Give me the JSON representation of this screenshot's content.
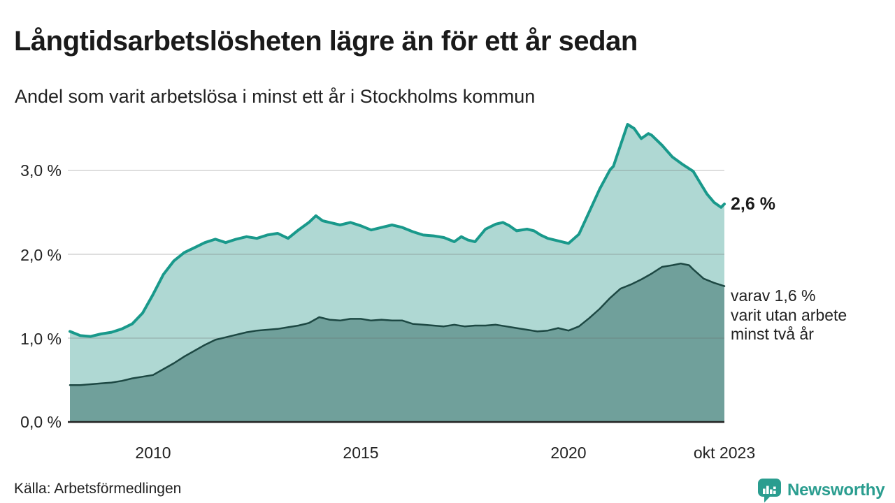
{
  "header": {
    "title": "Långtidsarbetslösheten lägre än för ett år sedan",
    "subtitle": "Andel som varit arbetslösa i minst ett år i Stockholms kommun"
  },
  "chart_data": {
    "type": "area",
    "title": "Långtidsarbetslösheten lägre än för ett år sedan",
    "subtitle": "Andel som varit arbetslösa i minst ett år i Stockholms kommun",
    "unit": "%",
    "grid": "horizontal",
    "legend_position": "none",
    "x_axis": {
      "range": [
        2007.95,
        2023.75
      ],
      "ticks": [
        {
          "label": "2010",
          "year": 2010
        },
        {
          "label": "2015",
          "year": 2015
        },
        {
          "label": "2020",
          "year": 2020
        },
        {
          "label": "okt 2023",
          "year": 2023.75
        }
      ]
    },
    "y_axis": {
      "range": [
        0,
        3.8
      ],
      "ticks": [
        {
          "label": "3,0 %",
          "value": 3.0
        },
        {
          "label": "2,0 %",
          "value": 2.0
        },
        {
          "label": "1,0 %",
          "value": 1.0
        },
        {
          "label": "0,0 %",
          "value": 0.0
        }
      ]
    },
    "series": [
      {
        "name": "Andel arbetslösa minst ett år",
        "line_color": "#19998b",
        "fill_color": "#afd8d3",
        "line_width": 4,
        "x": [
          2008.0,
          2008.25,
          2008.5,
          2008.75,
          2009.0,
          2009.25,
          2009.5,
          2009.75,
          2010.0,
          2010.25,
          2010.5,
          2010.75,
          2011.0,
          2011.25,
          2011.5,
          2011.75,
          2012.0,
          2012.25,
          2012.5,
          2012.75,
          2013.0,
          2013.25,
          2013.5,
          2013.75,
          2013.92,
          2014.08,
          2014.25,
          2014.5,
          2014.75,
          2015.0,
          2015.25,
          2015.5,
          2015.75,
          2016.0,
          2016.25,
          2016.5,
          2016.75,
          2017.0,
          2017.25,
          2017.42,
          2017.58,
          2017.75,
          2018.0,
          2018.25,
          2018.42,
          2018.58,
          2018.75,
          2019.0,
          2019.17,
          2019.33,
          2019.5,
          2019.75,
          2020.0,
          2020.25,
          2020.5,
          2020.75,
          2021.0,
          2021.08,
          2021.25,
          2021.42,
          2021.58,
          2021.75,
          2021.92,
          2022.0,
          2022.25,
          2022.5,
          2022.75,
          2023.0,
          2023.17,
          2023.33,
          2023.5,
          2023.67,
          2023.75
        ],
        "values": [
          1.08,
          1.03,
          1.02,
          1.05,
          1.07,
          1.11,
          1.17,
          1.3,
          1.52,
          1.76,
          1.92,
          2.02,
          2.08,
          2.14,
          2.18,
          2.14,
          2.18,
          2.21,
          2.19,
          2.23,
          2.25,
          2.19,
          2.29,
          2.38,
          2.46,
          2.4,
          2.38,
          2.35,
          2.38,
          2.34,
          2.29,
          2.32,
          2.35,
          2.32,
          2.27,
          2.23,
          2.22,
          2.2,
          2.15,
          2.21,
          2.17,
          2.15,
          2.3,
          2.36,
          2.38,
          2.34,
          2.28,
          2.3,
          2.28,
          2.23,
          2.19,
          2.16,
          2.13,
          2.24,
          2.51,
          2.78,
          3.01,
          3.05,
          3.3,
          3.55,
          3.5,
          3.38,
          3.44,
          3.42,
          3.3,
          3.16,
          3.07,
          2.99,
          2.85,
          2.72,
          2.62,
          2.56,
          2.6
        ]
      },
      {
        "name": "varav utan arbete minst två år",
        "line_color": "#1d4843",
        "fill_color": "#70a09b",
        "line_width": 2.5,
        "x": [
          2008.0,
          2008.25,
          2008.5,
          2008.75,
          2009.0,
          2009.25,
          2009.5,
          2009.75,
          2010.0,
          2010.25,
          2010.5,
          2010.75,
          2011.0,
          2011.25,
          2011.5,
          2011.75,
          2012.0,
          2012.25,
          2012.5,
          2012.75,
          2013.0,
          2013.25,
          2013.5,
          2013.75,
          2014.0,
          2014.25,
          2014.5,
          2014.75,
          2015.0,
          2015.25,
          2015.5,
          2015.75,
          2016.0,
          2016.25,
          2016.5,
          2016.75,
          2017.0,
          2017.25,
          2017.5,
          2017.75,
          2018.0,
          2018.25,
          2018.5,
          2018.75,
          2019.0,
          2019.25,
          2019.5,
          2019.75,
          2020.0,
          2020.25,
          2020.5,
          2020.75,
          2021.0,
          2021.25,
          2021.5,
          2021.75,
          2022.0,
          2022.25,
          2022.5,
          2022.7,
          2022.9,
          2023.0,
          2023.25,
          2023.5,
          2023.75
        ],
        "values": [
          0.44,
          0.44,
          0.45,
          0.46,
          0.47,
          0.49,
          0.52,
          0.54,
          0.56,
          0.63,
          0.7,
          0.78,
          0.85,
          0.92,
          0.98,
          1.01,
          1.04,
          1.07,
          1.09,
          1.1,
          1.11,
          1.13,
          1.15,
          1.18,
          1.25,
          1.22,
          1.21,
          1.23,
          1.23,
          1.21,
          1.22,
          1.21,
          1.21,
          1.17,
          1.16,
          1.15,
          1.14,
          1.16,
          1.14,
          1.15,
          1.15,
          1.16,
          1.14,
          1.12,
          1.1,
          1.08,
          1.09,
          1.12,
          1.09,
          1.14,
          1.24,
          1.35,
          1.48,
          1.59,
          1.64,
          1.7,
          1.77,
          1.85,
          1.87,
          1.89,
          1.87,
          1.82,
          1.71,
          1.66,
          1.62
        ]
      }
    ],
    "annotations": {
      "end_value": "2,6 %",
      "end_note": "varav 1,6 %\nvarit utan arbete\nminst två år"
    },
    "colors": {
      "gridline": "#d4d4d4",
      "baseline": "#222222",
      "text": "#222222"
    }
  },
  "footer": {
    "source": "Källa: Arbetsförmedlingen",
    "brand": "Newsworthy",
    "brand_color": "#2a9d8f"
  }
}
